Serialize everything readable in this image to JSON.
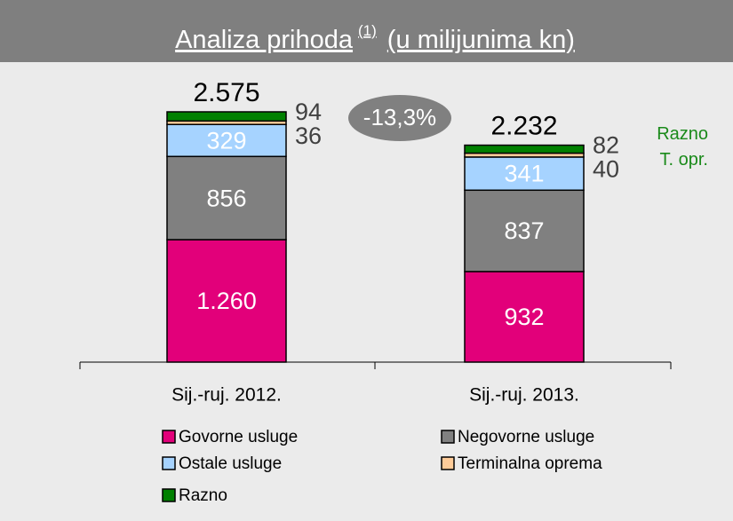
{
  "chart_data": {
    "type": "stacked_bar",
    "title": "Analiza prihoda",
    "title_note": "(1)",
    "subtitle": "(u milijunima kn)",
    "annotation": "-13,3%",
    "side_labels": [
      "Razno",
      "T. opr."
    ],
    "categories": [
      "Sij.-ruj. 2012.",
      "Sij.-ruj. 2013."
    ],
    "series": [
      {
        "name": "Govorne usluge",
        "color": "#e2007a",
        "values": [
          1260,
          932
        ],
        "value_labels": [
          "1.260",
          "932"
        ]
      },
      {
        "name": "Negovorne usluge",
        "color": "#808080",
        "values": [
          856,
          837
        ]
      },
      {
        "name": "Ostale usluge",
        "color": "#a6d3ff",
        "values": [
          329,
          341
        ]
      },
      {
        "name": "Terminalna oprema",
        "color": "#ffcc99",
        "values": [
          36,
          40
        ]
      },
      {
        "name": "Razno",
        "color": "#008000",
        "values": [
          94,
          82
        ]
      }
    ],
    "totals": {
      "values": [
        2575,
        2232
      ],
      "value_labels": [
        "2.575",
        "2.232"
      ]
    }
  }
}
